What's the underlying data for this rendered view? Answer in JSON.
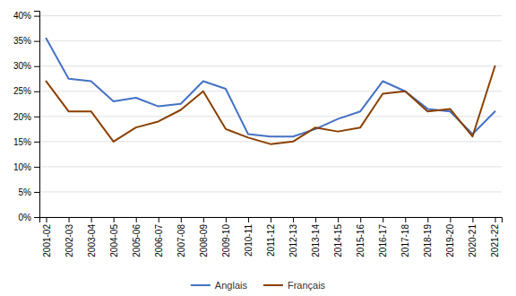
{
  "chart_data": {
    "type": "line",
    "categories": [
      "2001-02",
      "2002-03",
      "2003-04",
      "2004-05",
      "2005-06",
      "2006-07",
      "2007-08",
      "2008-09",
      "2009-10",
      "2010-11",
      "2011-12",
      "2012-13",
      "2013-14",
      "2014-15",
      "2015-16",
      "2016-17",
      "2017-18",
      "2018-19",
      "2019-20",
      "2020-21",
      "2021-22"
    ],
    "series": [
      {
        "name": "Anglais",
        "color": "#4472c4",
        "values": [
          0.355,
          0.275,
          0.27,
          0.23,
          0.237,
          0.22,
          0.225,
          0.27,
          0.255,
          0.165,
          0.16,
          0.16,
          0.175,
          0.195,
          0.21,
          0.27,
          0.25,
          0.215,
          0.21,
          0.165,
          0.21
        ]
      },
      {
        "name": "Français",
        "color": "#8B4000",
        "values": [
          0.27,
          0.21,
          0.21,
          0.15,
          0.178,
          0.19,
          0.213,
          0.25,
          0.175,
          0.158,
          0.145,
          0.15,
          0.178,
          0.17,
          0.178,
          0.245,
          0.25,
          0.21,
          0.215,
          0.16,
          0.3
        ]
      }
    ],
    "ylim": [
      0.0,
      0.41
    ],
    "yticks": [
      {
        "value": 0.0,
        "label": "0%"
      },
      {
        "value": 0.05,
        "label": "5%"
      },
      {
        "value": 0.1,
        "label": "10%"
      },
      {
        "value": 0.15,
        "label": "15%"
      },
      {
        "value": 0.2,
        "label": "20%"
      },
      {
        "value": 0.25,
        "label": "25%"
      },
      {
        "value": 0.3,
        "label": "30%"
      },
      {
        "value": 0.35,
        "label": "35%"
      },
      {
        "value": 0.4,
        "label": "40%"
      }
    ],
    "grid": true,
    "legend": "bottom"
  }
}
